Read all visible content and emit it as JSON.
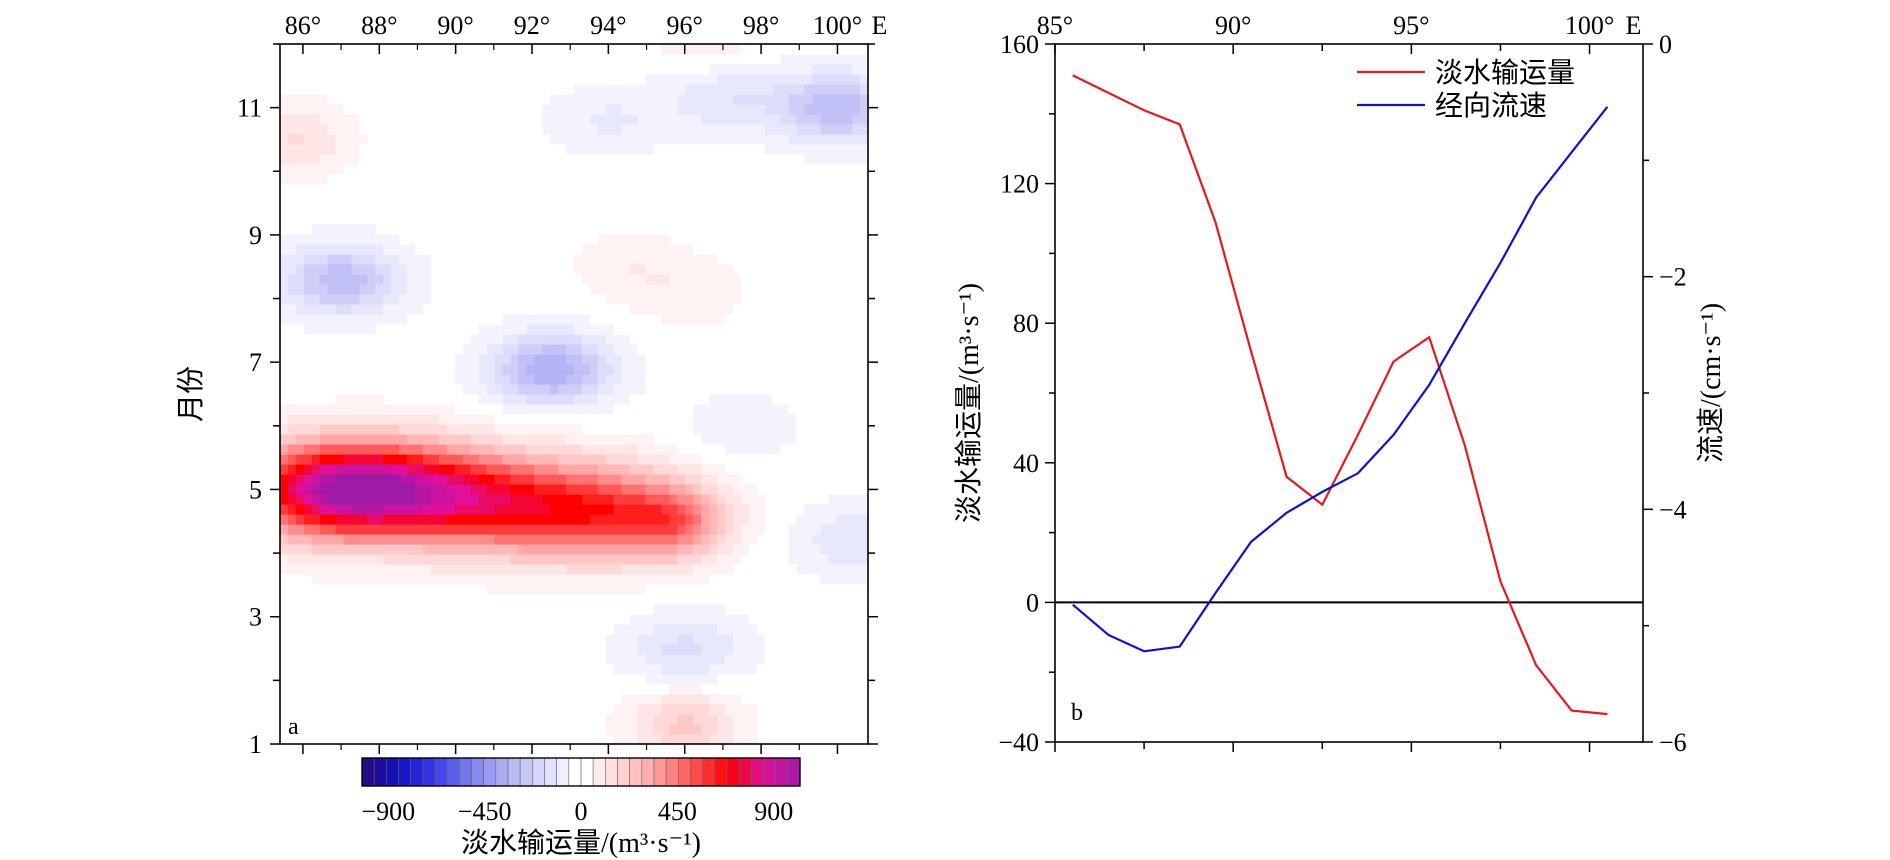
{
  "chart_data": [
    {
      "panel_label": "a",
      "type": "heatmap",
      "x_ticks": [
        "86°",
        "88°",
        "90°",
        "92°",
        "94°",
        "96°",
        "98°",
        "100°"
      ],
      "x_unit": "E",
      "xlim": [
        85.4,
        100.8
      ],
      "x_axis_position": "top",
      "y_ticks": [
        "1",
        "3",
        "5",
        "7",
        "9",
        "11"
      ],
      "ylim": [
        1,
        12
      ],
      "ylabel": "月份",
      "colorbar": {
        "label": "淡水输运量/(m³·s⁻¹)",
        "ticks": [
          "−900",
          "−450",
          "0",
          "450",
          "900"
        ],
        "range": [
          -900,
          900
        ],
        "levels": 36,
        "positive_colors": [
          "#ffffff",
          "#ffd9d9",
          "#ffa6a6",
          "#ff5a5a",
          "#ff0000",
          "#e0109a",
          "#a01aa8"
        ],
        "negative_colors": [
          "#ffffff",
          "#dcdcfb",
          "#b3b3f5",
          "#8080ee",
          "#3a3aee",
          "#1010c0",
          "#2a0a7a"
        ]
      },
      "features": [
        {
          "kind": "positive",
          "lon": 86.4,
          "month": 5.0,
          "amplitude": 620
        },
        {
          "kind": "positive",
          "lon": 88.5,
          "month": 5.0,
          "amplitude": 560
        },
        {
          "kind": "positive",
          "lon": 91.0,
          "month": 4.8,
          "amplitude": 460
        },
        {
          "kind": "positive",
          "lon": 93.8,
          "month": 4.65,
          "amplitude": 460
        },
        {
          "kind": "positive",
          "lon": 95.8,
          "month": 4.5,
          "amplitude": 300
        },
        {
          "kind": "positive",
          "lon": 85.8,
          "month": 10.5,
          "amplitude": 130
        },
        {
          "kind": "positive",
          "lon": 96.0,
          "month": 1.3,
          "amplitude": 190
        },
        {
          "kind": "positive",
          "lon": 94.5,
          "month": 8.5,
          "amplitude": 65
        },
        {
          "kind": "positive",
          "lon": 96.2,
          "month": 8.1,
          "amplitude": 60
        },
        {
          "kind": "positive",
          "lon": 96.5,
          "month": 12.0,
          "amplitude": 70
        },
        {
          "kind": "negative",
          "lon": 92.5,
          "month": 6.9,
          "amplitude": 320
        },
        {
          "kind": "negative",
          "lon": 87.0,
          "month": 8.3,
          "amplitude": 260
        },
        {
          "kind": "negative",
          "lon": 100.0,
          "month": 11.0,
          "amplitude": 270
        },
        {
          "kind": "negative",
          "lon": 97.0,
          "month": 11.2,
          "amplitude": 120
        },
        {
          "kind": "negative",
          "lon": 94.0,
          "month": 10.8,
          "amplitude": 80
        },
        {
          "kind": "negative",
          "lon": 96.0,
          "month": 2.5,
          "amplitude": 140
        },
        {
          "kind": "negative",
          "lon": 100.5,
          "month": 4.2,
          "amplitude": 120
        },
        {
          "kind": "negative",
          "lon": 97.5,
          "month": 6.0,
          "amplitude": 60
        }
      ]
    },
    {
      "panel_label": "b",
      "type": "line",
      "x_ticks": [
        "85°",
        "90°",
        "95°",
        "100°"
      ],
      "x_unit": "E",
      "xlim": [
        85,
        101.5
      ],
      "x_axis_position": "top",
      "ylabel": "淡水输运量/(m³·s⁻¹)",
      "ylim": [
        -40,
        160
      ],
      "y_ticks": [
        "160",
        "120",
        "80",
        "40",
        "0",
        "−40"
      ],
      "y2label": "流速/(cm·s⁻¹)",
      "y2lim": [
        -6,
        0
      ],
      "y2_ticks": [
        "0",
        "−2",
        "−4",
        "−6"
      ],
      "zero_line": 0,
      "legend_position": "top-right",
      "series": [
        {
          "name": "淡水输运量",
          "axis": "left",
          "color": "#e41a1c",
          "x": [
            85.5,
            86.5,
            87.5,
            88.5,
            89.5,
            90.5,
            91.5,
            92.5,
            93.5,
            94.5,
            95.5,
            96.5,
            97.5,
            98.5,
            99.5,
            100.5
          ],
          "values": [
            151,
            146,
            141,
            137,
            109,
            72,
            36,
            28,
            48,
            69,
            76,
            45,
            6,
            -18,
            -31,
            -32
          ]
        },
        {
          "name": "经向流速",
          "axis": "right",
          "color": "#1010d0",
          "x": [
            85.5,
            86.5,
            87.5,
            88.5,
            89.5,
            90.5,
            91.5,
            92.5,
            93.5,
            94.5,
            95.5,
            96.5,
            97.5,
            98.5,
            99.5,
            100.5
          ],
          "values": [
            -4.82,
            -5.08,
            -5.22,
            -5.18,
            -4.72,
            -4.28,
            -4.03,
            -3.85,
            -3.69,
            -3.36,
            -2.93,
            -2.4,
            -1.88,
            -1.32,
            -0.93,
            -0.54
          ]
        }
      ]
    }
  ]
}
